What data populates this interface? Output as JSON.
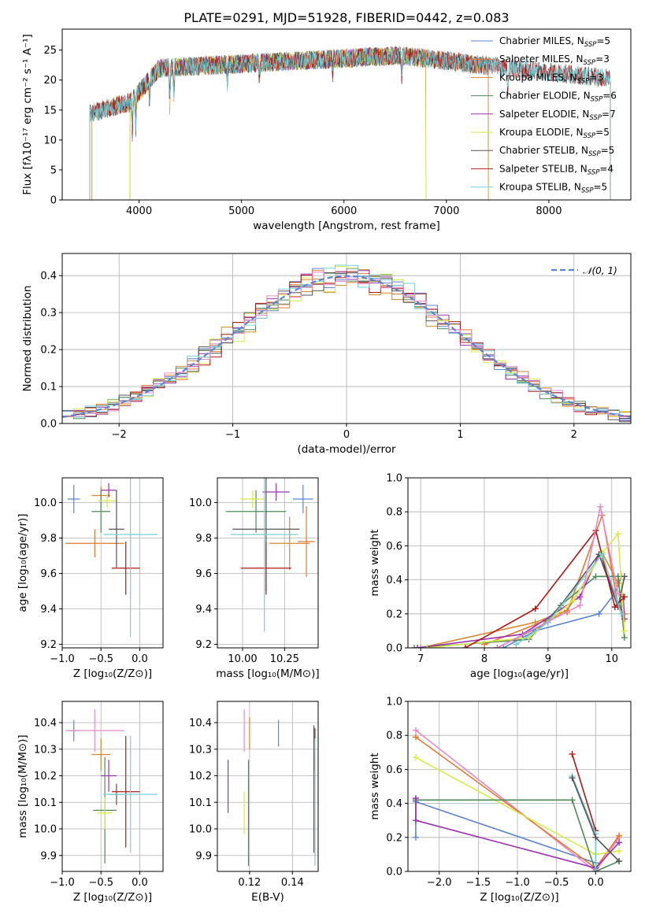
{
  "chart_data": [
    {
      "id": "spectrum",
      "type": "line",
      "title": "PLATE=0291, MJD=51928, FIBERID=0442, z=0.083",
      "xlabel": "wavelength [Angstrom, rest frame]",
      "ylabel": "Flux [fλ10⁻¹⁷ erg cm⁻² s⁻¹ A⁻¹]",
      "xlim": [
        3250,
        8800
      ],
      "ylim": [
        0,
        28.5
      ],
      "xticks": [
        4000,
        5000,
        6000,
        7000,
        8000
      ],
      "yticks": [
        0,
        5,
        10,
        15,
        20,
        25
      ],
      "grid": false,
      "legend_position": "right",
      "series": [
        {
          "name": "Chabrier MILES, N",
          "sub": "SSP",
          "suffix": "=5",
          "color": "#5b84d4",
          "range": [
            3540,
            7410
          ]
        },
        {
          "name": "Salpeter MILES, N",
          "sub": "SSP",
          "suffix": "=3",
          "color": "#e8762d",
          "range": [
            3540,
            7410
          ]
        },
        {
          "name": "Kroupa MILES, N",
          "sub": "SSP",
          "suffix": "=3",
          "color": "#d4882a",
          "range": [
            3540,
            7410
          ]
        },
        {
          "name": "Chabrier ELODIE, N",
          "sub": "SSP",
          "suffix": "=6",
          "color": "#4e8a57",
          "range": [
            3910,
            6800
          ]
        },
        {
          "name": "Salpeter ELODIE, N",
          "sub": "SSP",
          "suffix": "=7",
          "color": "#9b30b0",
          "range": [
            3910,
            6800
          ]
        },
        {
          "name": "Kroupa ELODIE, N",
          "sub": "SSP",
          "suffix": "=5",
          "color": "#d9ea45",
          "range": [
            3910,
            6800
          ]
        },
        {
          "name": "Chabrier STELIB, N",
          "sub": "SSP",
          "suffix": "=5",
          "color": "#555555",
          "range": [
            3520,
            8600
          ]
        },
        {
          "name": "Salpeter STELIB, N",
          "sub": "SSP",
          "suffix": "=4",
          "color": "#b01818",
          "range": [
            3520,
            8600
          ]
        },
        {
          "name": "Kroupa STELIB, N",
          "sub": "SSP",
          "suffix": "=5",
          "color": "#74d0d8",
          "range": [
            3520,
            8600
          ]
        }
      ]
    },
    {
      "id": "residuals",
      "type": "line",
      "xlabel": "(data-model)/error",
      "ylabel": "Normed distribution",
      "xlim": [
        -2.5,
        2.5
      ],
      "ylim": [
        0,
        0.46
      ],
      "xticks": [
        -2,
        -1,
        0,
        1,
        2
      ],
      "yticks": [
        0.0,
        0.1,
        0.2,
        0.3,
        0.4
      ],
      "grid": true,
      "legend_position": "top-right",
      "legend": "𝒩(0, 1)",
      "bin_width": 0.1
    },
    {
      "id": "age_vs_z",
      "type": "scatter",
      "xlabel": "Z [log₁₀(Z/Z⊙)]",
      "ylabel": "age  [log₁₀(age/yr)]",
      "xlim": [
        -1.0,
        0.3
      ],
      "ylim": [
        9.18,
        10.14
      ],
      "xticks": [
        -1.0,
        -0.5,
        0.0
      ],
      "yticks": [
        9.2,
        9.4,
        9.6,
        9.8,
        10.0
      ],
      "grid": true,
      "points": [
        {
          "x": -0.85,
          "xerr": 0.08,
          "y": 10.02,
          "yerr": 0.08,
          "color": "#5b84d4"
        },
        {
          "x": -0.58,
          "xerr": 0.38,
          "y": 9.77,
          "yerr": 0.08,
          "color": "#e8762d"
        },
        {
          "x": -0.5,
          "xerr": 0.12,
          "y": 10.04,
          "yerr": 0.05,
          "color": "#d4882a"
        },
        {
          "x": -0.5,
          "xerr": 0.12,
          "y": 9.95,
          "yerr": 0.12,
          "color": "#4e8a57"
        },
        {
          "x": -0.4,
          "xerr": 0.1,
          "y": 10.07,
          "yerr": 0.04,
          "color": "#9b30b0"
        },
        {
          "x": -0.42,
          "xerr": 0.12,
          "y": 10.01,
          "yerr": 0.04,
          "color": "#d9ea45"
        },
        {
          "x": -0.3,
          "xerr": 0.1,
          "y": 9.85,
          "yerr": 0.22,
          "color": "#555555"
        },
        {
          "x": -0.18,
          "xerr": 0.18,
          "y": 9.63,
          "yerr": 0.15,
          "color": "#b01818"
        },
        {
          "x": -0.12,
          "xerr": 0.35,
          "y": 9.82,
          "yerr": 0.58,
          "color": "#74d0d8"
        }
      ]
    },
    {
      "id": "age_vs_mass",
      "type": "scatter",
      "xlabel": "mass [log₁₀(M/M⊙)]",
      "ylabel": "",
      "xlim": [
        9.85,
        10.45
      ],
      "ylim": [
        9.18,
        10.14
      ],
      "xticks": [
        10.0,
        10.25
      ],
      "yticks": [
        9.2,
        9.4,
        9.6,
        9.8,
        10.0
      ],
      "grid": true,
      "points": [
        {
          "x": 10.36,
          "xerr": 0.06,
          "y": 10.02,
          "yerr": 0.08,
          "color": "#5b84d4"
        },
        {
          "x": 10.38,
          "xerr": 0.05,
          "y": 9.78,
          "yerr": 0.2,
          "color": "#e8762d"
        },
        {
          "x": 10.28,
          "xerr": 0.12,
          "y": 9.77,
          "yerr": 0.15,
          "color": "#d4882a"
        },
        {
          "x": 10.08,
          "xerr": 0.18,
          "y": 9.95,
          "yerr": 0.12,
          "color": "#4e8a57"
        },
        {
          "x": 10.2,
          "xerr": 0.08,
          "y": 10.06,
          "yerr": 0.05,
          "color": "#9b30b0"
        },
        {
          "x": 10.06,
          "xerr": 0.07,
          "y": 10.02,
          "yerr": 0.05,
          "color": "#d9ea45"
        },
        {
          "x": 10.14,
          "xerr": 0.2,
          "y": 9.85,
          "yerr": 0.35,
          "color": "#555555"
        },
        {
          "x": 10.14,
          "xerr": 0.15,
          "y": 9.63,
          "yerr": 0.15,
          "color": "#b01818"
        },
        {
          "x": 10.13,
          "xerr": 0.2,
          "y": 9.82,
          "yerr": 0.55,
          "color": "#74d0d8"
        }
      ]
    },
    {
      "id": "weight_vs_age",
      "type": "line",
      "xlabel": "age  [log₁₀(age/yr)]",
      "ylabel": "mass weight",
      "xlim": [
        6.8,
        10.3
      ],
      "ylim": [
        0,
        1.0
      ],
      "xticks": [
        7,
        8,
        9,
        10
      ],
      "yticks": [
        0.0,
        0.2,
        0.4,
        0.6,
        0.8,
        1.0
      ],
      "grid": true,
      "series": [
        {
          "color": "#5b84d4",
          "x": [
            8.3,
            8.8,
            9.8,
            10.05,
            10.15
          ],
          "y": [
            0.0,
            0.1,
            0.2,
            0.32,
            0.42
          ]
        },
        {
          "color": "#e8762d",
          "x": [
            8.0,
            9.3,
            9.85,
            10.1,
            10.2
          ],
          "y": [
            0.02,
            0.21,
            0.78,
            0.25,
            0.2
          ]
        },
        {
          "color": "#d4882a",
          "x": [
            7.0,
            8.8,
            9.3,
            9.85,
            10.1
          ],
          "y": [
            0.0,
            0.15,
            0.22,
            0.56,
            0.38
          ]
        },
        {
          "color": "#4e8a57",
          "x": [
            6.9,
            8.7,
            9.2,
            9.75,
            10.1,
            10.2
          ],
          "y": [
            0.0,
            0.05,
            0.25,
            0.42,
            0.42,
            0.06
          ]
        },
        {
          "color": "#9b30b0",
          "x": [
            6.95,
            8.6,
            9.5,
            9.8,
            10.2,
            10.18
          ],
          "y": [
            0.0,
            0.08,
            0.3,
            0.55,
            0.17,
            0.3
          ]
        },
        {
          "color": "#d9ea45",
          "x": [
            7.1,
            8.7,
            9.4,
            9.85,
            10.1,
            10.2
          ],
          "y": [
            0.0,
            0.06,
            0.28,
            0.56,
            0.67,
            0.1
          ]
        },
        {
          "color": "#555555",
          "x": [
            8.2,
            9.0,
            9.8,
            10.1,
            10.2
          ],
          "y": [
            0.0,
            0.15,
            0.55,
            0.24,
            0.42
          ]
        },
        {
          "color": "#b01818",
          "x": [
            7.7,
            8.8,
            9.75,
            10.05,
            10.2
          ],
          "y": [
            0.0,
            0.23,
            0.69,
            0.24,
            0.3
          ]
        },
        {
          "color": "#74d0d8",
          "x": [
            8.5,
            9.0,
            9.85,
            10.15
          ],
          "y": [
            0.02,
            0.15,
            0.55,
            0.2
          ]
        },
        {
          "color": "#e88ac8",
          "x": [
            8.2,
            9.5,
            9.82,
            10.1
          ],
          "y": [
            0.0,
            0.25,
            0.83,
            0.32
          ]
        }
      ]
    },
    {
      "id": "mass_vs_z",
      "type": "scatter",
      "xlabel": "Z [log₁₀(Z/Z⊙)]",
      "ylabel": "mass [log₁₀(M/M⊙)]",
      "xlim": [
        -1.0,
        0.3
      ],
      "ylim": [
        9.84,
        10.48
      ],
      "xticks": [
        -1.0,
        -0.5,
        0.0
      ],
      "yticks": [
        9.9,
        10.0,
        10.1,
        10.2,
        10.3,
        10.4
      ],
      "grid": true,
      "points": [
        {
          "x": -0.85,
          "xerr": 0.08,
          "y": 10.37,
          "yerr": 0.04,
          "color": "#5b84d4"
        },
        {
          "x": -0.58,
          "xerr": 0.38,
          "y": 10.37,
          "yerr": 0.08,
          "color": "#e88ac8"
        },
        {
          "x": -0.5,
          "xerr": 0.12,
          "y": 10.28,
          "yerr": 0.06,
          "color": "#d4882a"
        },
        {
          "x": -0.4,
          "xerr": 0.1,
          "y": 10.2,
          "yerr": 0.06,
          "color": "#9b30b0"
        },
        {
          "x": -0.45,
          "xerr": 0.15,
          "y": 10.07,
          "yerr": 0.2,
          "color": "#4e8a57"
        },
        {
          "x": -0.45,
          "xerr": 0.1,
          "y": 10.06,
          "yerr": 0.06,
          "color": "#d9ea45"
        },
        {
          "x": -0.3,
          "xerr": 0.1,
          "y": 10.13,
          "yerr": 0.04,
          "color": "#555555"
        },
        {
          "x": -0.18,
          "xerr": 0.18,
          "y": 10.14,
          "yerr": 0.21,
          "color": "#b01818"
        },
        {
          "x": -0.12,
          "xerr": 0.35,
          "y": 10.13,
          "yerr": 0.22,
          "color": "#74d0d8"
        }
      ]
    },
    {
      "id": "mass_vs_ebv",
      "type": "scatter",
      "xlabel": "E(B-V)",
      "ylabel": "",
      "xlim": [
        0.105,
        0.152
      ],
      "ylim": [
        9.84,
        10.48
      ],
      "xticks": [
        0.12,
        0.14
      ],
      "yticks": [
        9.9,
        10.0,
        10.1,
        10.2,
        10.3,
        10.4
      ],
      "grid": true,
      "points": [
        {
          "x": 0.1335,
          "y": 10.36,
          "yerr": 0.05,
          "color": "#5b84d4"
        },
        {
          "x": 0.1175,
          "y": 10.37,
          "yerr": 0.08,
          "color": "#e88ac8"
        },
        {
          "x": 0.12,
          "y": 10.36,
          "yerr": 0.06,
          "color": "#d4882a"
        },
        {
          "x": 0.11,
          "y": 10.16,
          "yerr": 0.1,
          "color": "#9b30b0"
        },
        {
          "x": 0.1195,
          "y": 10.06,
          "yerr": 0.2,
          "color": "#4e8a57"
        },
        {
          "x": 0.1175,
          "y": 10.06,
          "yerr": 0.08,
          "color": "#d9ea45"
        },
        {
          "x": 0.15,
          "y": 10.15,
          "yerr": 0.24,
          "color": "#555555"
        },
        {
          "x": 0.1505,
          "y": 10.3,
          "yerr": 0.08,
          "color": "#b01818"
        },
        {
          "x": 0.1505,
          "y": 10.1,
          "yerr": 0.24,
          "color": "#74d0d8"
        }
      ]
    },
    {
      "id": "weight_vs_z",
      "type": "line",
      "xlabel": "Z [log₁₀(Z/Z⊙)]",
      "ylabel": "mass weight",
      "xlim": [
        -2.4,
        0.45
      ],
      "ylim": [
        0,
        1.0
      ],
      "xticks": [
        -2.0,
        -1.5,
        -1.0,
        -0.5,
        0.0
      ],
      "yticks": [
        0.0,
        0.2,
        0.4,
        0.6,
        0.8,
        1.0
      ],
      "grid": true,
      "series": [
        {
          "color": "#5b84d4",
          "x": [
            -2.3,
            -2.3,
            0.0,
            0.0
          ],
          "y": [
            0.2,
            0.41,
            0.05,
            0.0
          ]
        },
        {
          "color": "#e88ac8",
          "x": [
            -2.3,
            0.0,
            0.3
          ],
          "y": [
            0.83,
            0.0,
            0.2
          ]
        },
        {
          "color": "#e8762d",
          "x": [
            -2.3,
            0.0,
            0.3
          ],
          "y": [
            0.79,
            0.02,
            0.21
          ]
        },
        {
          "color": "#d9ea45",
          "x": [
            -2.3,
            0.0,
            0.3
          ],
          "y": [
            0.67,
            0.1,
            0.12
          ]
        },
        {
          "color": "#4e8a57",
          "x": [
            -2.3,
            -0.3,
            0.0,
            0.3
          ],
          "y": [
            0.42,
            0.42,
            0.0,
            0.06
          ]
        },
        {
          "color": "#9b30b0",
          "x": [
            -2.3,
            -2.3,
            0.0,
            0.3
          ],
          "y": [
            0.43,
            0.3,
            0.02,
            0.17
          ]
        },
        {
          "color": "#b01818",
          "x": [
            -0.3,
            0.0,
            0.0
          ],
          "y": [
            0.69,
            0.24,
            0.0
          ]
        },
        {
          "color": "#74d0d8",
          "x": [
            -0.3,
            0.0,
            0.0
          ],
          "y": [
            0.56,
            0.22,
            0.0
          ]
        },
        {
          "color": "#555555",
          "x": [
            -0.3,
            0.0,
            0.3
          ],
          "y": [
            0.55,
            0.2,
            0.06
          ]
        }
      ]
    }
  ]
}
